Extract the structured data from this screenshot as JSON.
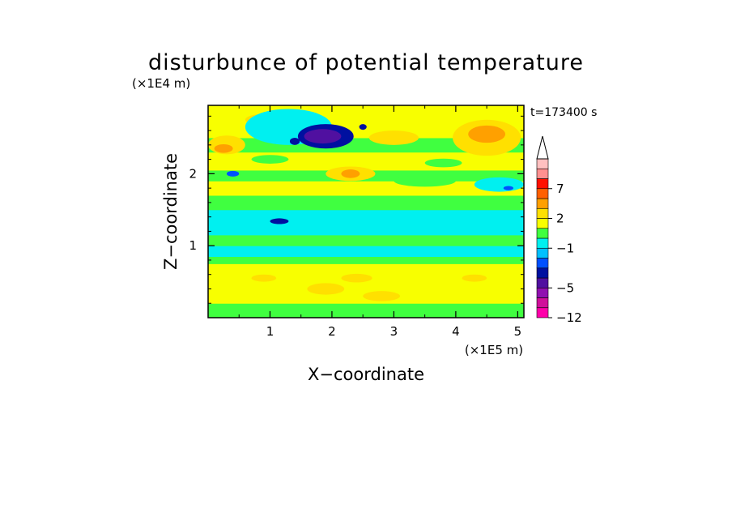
{
  "chart_data": {
    "type": "heatmap",
    "title": "disturbunce of potential temperature",
    "time_label": "t=173400 s",
    "xlabel": "X−coordinate",
    "ylabel": "Z−coordinate",
    "x_unit": "(×1E5 m)",
    "y_unit": "(×1E4 m)",
    "xlim": [
      0,
      5.1
    ],
    "ylim": [
      0,
      2.95
    ],
    "x_ticks": [
      1,
      2,
      3,
      4,
      5
    ],
    "x_tick_labels": [
      "1",
      "2",
      "3",
      "4",
      "5"
    ],
    "y_ticks": [
      1,
      2
    ],
    "y_tick_labels": [
      "1",
      "2"
    ],
    "colorbar": {
      "levels": [
        -12,
        -9,
        -7,
        -5,
        -4,
        -3,
        -2,
        -1,
        0,
        1,
        2,
        3,
        5,
        7,
        9,
        12
      ],
      "labeled_levels": [
        7,
        2,
        -1,
        -5,
        -12
      ],
      "labels": [
        "7",
        "2",
        "−1",
        "−5",
        "−12"
      ],
      "colors": [
        "#ff00aa",
        "#d0109a",
        "#9010b0",
        "#5010a0",
        "#0010a0",
        "#0050ff",
        "#00c0ff",
        "#00f0f0",
        "#40ff40",
        "#f8ff00",
        "#ffe000",
        "#ffa000",
        "#ff6000",
        "#ff1000",
        "#ff9090",
        "#ffc0c0"
      ],
      "extend": "max"
    },
    "bands": [
      {
        "z": [
          0.0,
          0.2
        ],
        "value": 0.5
      },
      {
        "z": [
          0.2,
          0.75
        ],
        "value": 1.5
      },
      {
        "z": [
          0.75,
          0.85
        ],
        "value": 0.5
      },
      {
        "z": [
          0.85,
          1.0
        ],
        "value": -0.5
      },
      {
        "z": [
          1.0,
          1.15
        ],
        "value": 0.5
      },
      {
        "z": [
          1.15,
          1.5
        ],
        "value": -0.5
      },
      {
        "z": [
          1.5,
          1.7
        ],
        "value": 0.5
      },
      {
        "z": [
          1.7,
          1.9
        ],
        "value": 1.5
      },
      {
        "z": [
          1.9,
          2.05
        ],
        "value": 0.5
      },
      {
        "z": [
          2.05,
          2.3
        ],
        "value": 1.5
      },
      {
        "z": [
          2.3,
          2.5
        ],
        "value": 0.5
      },
      {
        "z": [
          2.5,
          2.95
        ],
        "value": 1.5
      }
    ],
    "features": [
      {
        "cx": 0.3,
        "cz": 2.4,
        "rx": 0.3,
        "rz": 0.13,
        "value": 2.5
      },
      {
        "cx": 0.25,
        "cz": 2.35,
        "rx": 0.15,
        "rz": 0.06,
        "value": 4
      },
      {
        "cx": 4.5,
        "cz": 2.5,
        "rx": 0.55,
        "rz": 0.25,
        "value": 2.5
      },
      {
        "cx": 4.5,
        "cz": 2.55,
        "rx": 0.3,
        "rz": 0.12,
        "value": 4
      },
      {
        "cx": 2.3,
        "cz": 2.0,
        "rx": 0.4,
        "rz": 0.1,
        "value": 2.5
      },
      {
        "cx": 2.3,
        "cz": 2.0,
        "rx": 0.15,
        "rz": 0.06,
        "value": 4
      },
      {
        "cx": 0.9,
        "cz": 2.75,
        "rx": 0.3,
        "rz": 0.08,
        "value": 2.5
      },
      {
        "cx": 3.0,
        "cz": 2.5,
        "rx": 0.4,
        "rz": 0.1,
        "value": 2.5
      },
      {
        "cx": 3.5,
        "cz": 1.9,
        "rx": 0.5,
        "rz": 0.08,
        "value": 0.5
      },
      {
        "cx": 4.7,
        "cz": 1.85,
        "rx": 0.4,
        "rz": 0.1,
        "value": -0.5
      },
      {
        "cx": 4.85,
        "cz": 1.8,
        "rx": 0.08,
        "rz": 0.03,
        "value": -2.5
      },
      {
        "cx": 0.4,
        "cz": 2.0,
        "rx": 0.1,
        "rz": 0.04,
        "value": -2.5
      },
      {
        "cx": 1.3,
        "cz": 2.65,
        "rx": 0.7,
        "rz": 0.25,
        "value": -0.5
      },
      {
        "cx": 1.9,
        "cz": 2.52,
        "rx": 0.45,
        "rz": 0.17,
        "value": -3.5
      },
      {
        "cx": 1.85,
        "cz": 2.52,
        "rx": 0.3,
        "rz": 0.1,
        "value": -4.5
      },
      {
        "cx": 1.4,
        "cz": 2.45,
        "rx": 0.08,
        "rz": 0.05,
        "value": -3.5
      },
      {
        "cx": 2.5,
        "cz": 2.65,
        "rx": 0.06,
        "rz": 0.04,
        "value": -3.5
      },
      {
        "cx": 1.15,
        "cz": 1.34,
        "rx": 0.15,
        "rz": 0.04,
        "value": -3.5
      },
      {
        "cx": 1.5,
        "cz": 1.57,
        "rx": 0.5,
        "rz": 0.05,
        "value": 0.5
      },
      {
        "cx": 1.9,
        "cz": 0.4,
        "rx": 0.3,
        "rz": 0.08,
        "value": 2.5
      },
      {
        "cx": 2.4,
        "cz": 0.55,
        "rx": 0.25,
        "rz": 0.06,
        "value": 2.5
      },
      {
        "cx": 0.9,
        "cz": 0.55,
        "rx": 0.2,
        "rz": 0.05,
        "value": 2.5
      },
      {
        "cx": 4.3,
        "cz": 0.55,
        "rx": 0.2,
        "rz": 0.05,
        "value": 2.5
      },
      {
        "cx": 2.8,
        "cz": 0.3,
        "rx": 0.3,
        "rz": 0.07,
        "value": 2.5
      },
      {
        "cx": 3.8,
        "cz": 2.15,
        "rx": 0.3,
        "rz": 0.06,
        "value": 0.5
      },
      {
        "cx": 1.0,
        "cz": 2.2,
        "rx": 0.3,
        "rz": 0.06,
        "value": 0.5
      }
    ]
  }
}
